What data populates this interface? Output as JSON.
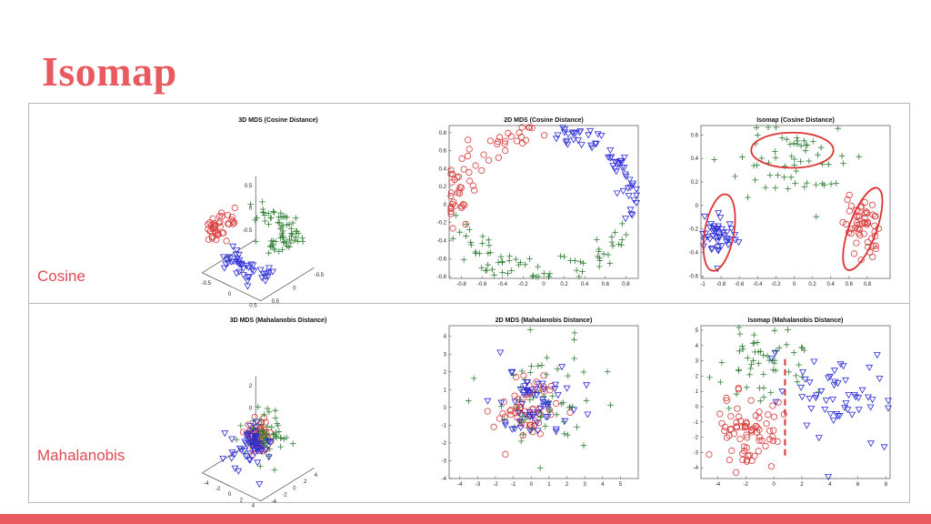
{
  "slide": {
    "title": "Isomap",
    "rows": [
      "Cosine",
      "Mahalanobis"
    ],
    "colors": {
      "accent": "#e85a5f",
      "class_circle": "#d63a3a",
      "class_plus": "#2e7d32",
      "class_triangle": "#2b2bd6",
      "border": "#b9b9b9"
    }
  },
  "chart_data": [
    {
      "id": "mds3d_cos",
      "type": "scatter",
      "title": "3D MDS (Cosine Distance)",
      "is3d": true,
      "xticks": [
        "-0.5",
        "0",
        "0.5"
      ],
      "yticks": [
        "0.5",
        "0",
        "-0.5"
      ],
      "zticks": [
        "0.5",
        "0",
        "-0.5"
      ],
      "xlim": [
        -0.8,
        0.8
      ],
      "ylim": [
        -0.8,
        0.8
      ],
      "zlim": [
        -0.6,
        0.6
      ],
      "series": [
        {
          "marker": "circle",
          "shape": "arc",
          "n": 40,
          "cx": -0.55,
          "cy": -0.4,
          "rx": 0.25,
          "ry": 0.3,
          "a0": 90,
          "a1": 300,
          "jitter": 0.08,
          "zmid": 0.2
        },
        {
          "marker": "plus",
          "shape": "arc",
          "n": 70,
          "cx": 0.1,
          "cy": 0.0,
          "rx": 0.65,
          "ry": 0.55,
          "a0": -40,
          "a1": 140,
          "jitter": 0.1,
          "zmid": 0.2
        },
        {
          "marker": "triangle",
          "shape": "arc",
          "n": 45,
          "cx": 0.05,
          "cy": 0.0,
          "rx": 0.6,
          "ry": 0.55,
          "a0": 200,
          "a1": 330,
          "jitter": 0.08,
          "zmid": -0.35
        }
      ]
    },
    {
      "id": "mds2d_cos",
      "type": "scatter",
      "title": "2D MDS (Cosine Distance)",
      "xlim": [
        -0.92,
        0.92
      ],
      "ylim": [
        -0.82,
        0.88
      ],
      "xticks": [
        -0.8,
        -0.6,
        -0.4,
        -0.2,
        0,
        0.2,
        0.4,
        0.6,
        0.8
      ],
      "yticks": [
        0.8,
        0.6,
        0.4,
        0.2,
        0,
        -0.2,
        -0.4,
        -0.6,
        -0.8
      ],
      "series": [
        {
          "marker": "circle",
          "shape": "arc",
          "n": 60,
          "cx": 0.0,
          "cy": 0.0,
          "rx": 0.85,
          "ry": 0.8,
          "a0": 95,
          "a1": 195,
          "jitter": 0.07
        },
        {
          "marker": "plus",
          "shape": "arc",
          "n": 75,
          "cx": 0.0,
          "cy": 0.0,
          "rx": 0.82,
          "ry": 0.78,
          "a0": 195,
          "a1": 345,
          "jitter": 0.08
        },
        {
          "marker": "triangle",
          "shape": "arc",
          "n": 60,
          "cx": 0.0,
          "cy": 0.0,
          "rx": 0.85,
          "ry": 0.8,
          "a0": -15,
          "a1": 80,
          "jitter": 0.06
        }
      ]
    },
    {
      "id": "iso_cos",
      "type": "scatter",
      "title": "Isomap (Cosine Distance)",
      "xlim": [
        -1.02,
        1.05
      ],
      "ylim": [
        -0.62,
        0.68
      ],
      "xticks": [
        -1,
        -0.8,
        -0.6,
        -0.4,
        -0.2,
        0,
        0.2,
        0.4,
        0.6,
        0.8
      ],
      "yticks": [
        0.6,
        0.4,
        0.2,
        0,
        -0.2,
        -0.4,
        -0.6
      ],
      "series": [
        {
          "marker": "triangle",
          "shape": "blob",
          "n": 45,
          "cx": -0.82,
          "cy": -0.25,
          "sx": 0.1,
          "sy": 0.1
        },
        {
          "marker": "plus",
          "shape": "blob",
          "n": 60,
          "cx": 0.0,
          "cy": 0.35,
          "sx": 0.3,
          "sy": 0.17
        },
        {
          "marker": "circle",
          "shape": "blob",
          "n": 55,
          "cx": 0.75,
          "cy": -0.2,
          "sx": 0.1,
          "sy": 0.13
        }
      ],
      "highlights": [
        {
          "kind": "ellipse",
          "cx": -0.82,
          "cy": -0.23,
          "rx": 0.16,
          "ry": 0.33,
          "rot": 10
        },
        {
          "kind": "ellipse",
          "cx": -0.02,
          "cy": 0.47,
          "rx": 0.45,
          "ry": 0.15,
          "rot": 0
        },
        {
          "kind": "ellipse",
          "cx": 0.75,
          "cy": -0.2,
          "rx": 0.15,
          "ry": 0.37,
          "rot": 20
        }
      ]
    },
    {
      "id": "mds3d_mah",
      "type": "scatter",
      "title": "3D MDS (Mahalanobis Distance)",
      "is3d": true,
      "xticks": [
        "-4",
        "-2",
        "0",
        "2",
        "4"
      ],
      "yticks": [
        "-4",
        "-2",
        "0",
        "2",
        "4"
      ],
      "zticks": [
        "2",
        "0",
        "-2"
      ],
      "xlim": [
        -5,
        5
      ],
      "ylim": [
        -5,
        5
      ],
      "zlim": [
        -3,
        3
      ],
      "series": [
        {
          "marker": "circle",
          "shape": "blob",
          "n": 55,
          "cx": 0.0,
          "cy": 0.0,
          "sx": 0.8,
          "sy": 0.8,
          "zmid": 0.0,
          "sz": 0.7
        },
        {
          "marker": "plus",
          "shape": "blob",
          "n": 60,
          "cx": 0.8,
          "cy": 0.5,
          "sx": 1.3,
          "sy": 1.3,
          "zmid": 0.3,
          "sz": 1.0
        },
        {
          "marker": "triangle",
          "shape": "blob",
          "n": 55,
          "cx": -0.6,
          "cy": -0.5,
          "sx": 1.2,
          "sy": 1.2,
          "zmid": -0.4,
          "sz": 0.8
        }
      ]
    },
    {
      "id": "mds2d_mah",
      "type": "scatter",
      "title": "2D MDS (Mahalanobis Distance)",
      "xlim": [
        -4.6,
        6.0
      ],
      "ylim": [
        -4.0,
        4.6
      ],
      "xticks": [
        -4,
        -3,
        -2,
        -1,
        0,
        1,
        2,
        3,
        4,
        5
      ],
      "yticks": [
        4,
        3,
        2,
        1,
        0,
        -1,
        -2,
        -3,
        -4
      ],
      "series": [
        {
          "marker": "circle",
          "shape": "blob",
          "n": 60,
          "cx": -0.3,
          "cy": 0.0,
          "sx": 0.9,
          "sy": 0.9
        },
        {
          "marker": "plus",
          "shape": "blob",
          "n": 60,
          "cx": 0.6,
          "cy": 0.3,
          "sx": 1.6,
          "sy": 1.5
        },
        {
          "marker": "triangle",
          "shape": "blob",
          "n": 60,
          "cx": -0.1,
          "cy": 0.1,
          "sx": 1.1,
          "sy": 1.2
        }
      ]
    },
    {
      "id": "iso_mah",
      "type": "scatter",
      "title": "Isomap (Mahalanobis Distance)",
      "xlim": [
        -5.2,
        8.3
      ],
      "ylim": [
        -4.7,
        5.3
      ],
      "xticks": [
        -4,
        -2,
        0,
        2,
        4,
        6,
        8
      ],
      "yticks": [
        5,
        4,
        3,
        2,
        1,
        0,
        -1,
        -2,
        -3,
        -4
      ],
      "series": [
        {
          "marker": "circle",
          "shape": "blob",
          "n": 75,
          "cx": -1.7,
          "cy": -1.6,
          "sx": 1.1,
          "sy": 1.3
        },
        {
          "marker": "plus",
          "shape": "blob",
          "n": 55,
          "cx": -1.0,
          "cy": 2.3,
          "sx": 1.5,
          "sy": 1.3
        },
        {
          "marker": "triangle",
          "shape": "blob",
          "n": 55,
          "cx": 4.5,
          "cy": 0.6,
          "sx": 1.8,
          "sy": 1.6
        }
      ],
      "highlights": [
        {
          "kind": "vline",
          "x": 0.8,
          "y0": -3.2,
          "y1": 3.3
        }
      ]
    }
  ]
}
